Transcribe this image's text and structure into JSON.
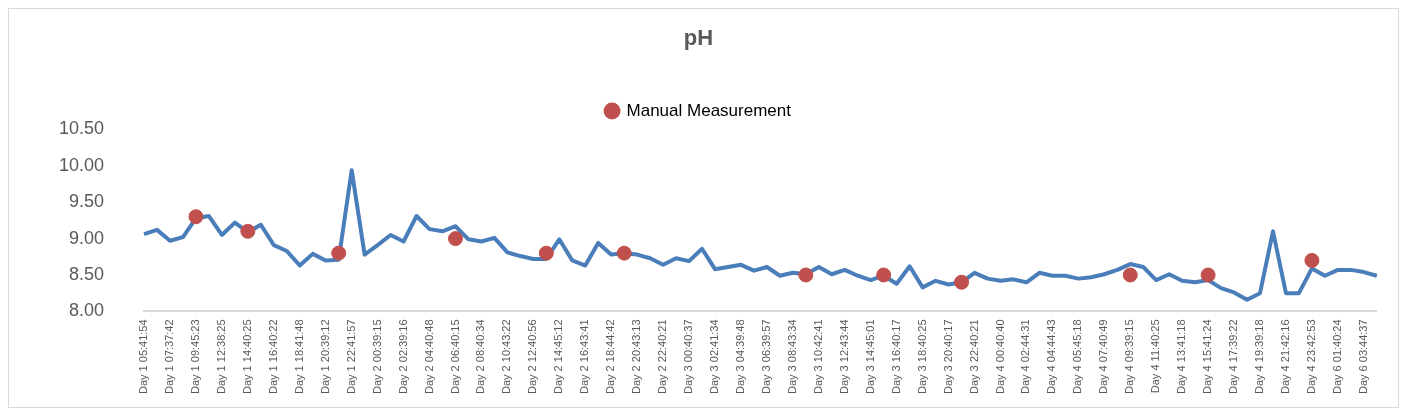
{
  "chart_data": {
    "type": "line",
    "title": "pH",
    "categories": [
      "Day 1 05:41:54",
      null,
      "Day 1 07:37:42",
      null,
      "Day 1 09:45:23",
      null,
      "Day 1 12:38:25",
      null,
      "Day 1 14:40:25",
      null,
      "Day 1 16:40:22",
      null,
      "Day 1 18:41:48",
      null,
      "Day 1 20:39:12",
      null,
      "Day 1 22:41:57",
      null,
      "Day 2 00:39:15",
      null,
      "Day 2 02:39:16",
      null,
      "Day 2 04:40:48",
      null,
      "Day 2 06:40:15",
      null,
      "Day 2 08:40:34",
      null,
      "Day 2 10:43:22",
      null,
      "Day 2 12:40:56",
      null,
      "Day 2 14:45:12",
      null,
      "Day 2 16:43:41",
      null,
      "Day 2 18:44:42",
      null,
      "Day 2 20:43:13",
      null,
      "Day 2 22:40:21",
      null,
      "Day 3 00:40:37",
      null,
      "Day 3 02:41:34",
      null,
      "Day 3 04:39:48",
      null,
      "Day 3 06:39:57",
      null,
      "Day 3 08:43:34",
      null,
      "Day 3 10:42:41",
      null,
      "Day 3 12:43:44",
      null,
      "Day 3 14:45:01",
      null,
      "Day 3 16:40:17",
      null,
      "Day 3 18:40:25",
      null,
      "Day 3 20:40:17",
      null,
      "Day 3 22:40:21",
      null,
      "Day 4 00:40:40",
      null,
      "Day 4 02:44:31",
      null,
      "Day 4 04:44:43",
      null,
      "Day 4 05:45:18",
      null,
      "Day 4 07:40:49",
      null,
      "Day 4 09:39:15",
      null,
      "Day 4 11:40:25",
      null,
      "Day 4 13:41:18",
      null,
      "Day 4 15:41:24",
      null,
      "Day 4 17:39:22",
      null,
      "Day 4 19:39:18",
      null,
      "Day 4 21:42:16",
      null,
      "Day 4 23:42:53",
      null,
      "Day 6 01:40:24",
      null,
      "Day 6 03:44:37",
      null
    ],
    "series": [
      {
        "type": "line",
        "color": "#4a7ebb",
        "values": [
          9.06,
          9.12,
          8.97,
          9.02,
          9.28,
          9.31,
          9.05,
          9.22,
          9.09,
          9.19,
          8.91,
          8.83,
          8.63,
          8.79,
          8.7,
          8.71,
          9.94,
          8.78,
          8.91,
          9.05,
          8.96,
          9.31,
          9.13,
          9.1,
          9.17,
          8.99,
          8.96,
          9.01,
          8.81,
          8.76,
          8.72,
          8.72,
          8.99,
          8.7,
          8.63,
          8.94,
          8.78,
          8.8,
          8.78,
          8.73,
          8.64,
          8.73,
          8.69,
          8.86,
          8.58,
          8.61,
          8.64,
          8.56,
          8.61,
          8.49,
          8.53,
          8.51,
          8.61,
          8.51,
          8.57,
          8.49,
          8.43,
          8.49,
          8.38,
          8.62,
          8.33,
          8.42,
          8.37,
          8.4,
          8.53,
          8.45,
          8.42,
          8.44,
          8.4,
          8.53,
          8.49,
          8.49,
          8.45,
          8.47,
          8.51,
          8.57,
          8.65,
          8.61,
          8.43,
          8.51,
          8.42,
          8.4,
          8.43,
          8.32,
          8.26,
          8.16,
          8.25,
          9.1,
          8.25,
          8.25,
          8.59,
          8.49,
          8.57,
          8.57,
          8.54,
          8.49
        ]
      },
      {
        "type": "scatter",
        "name": "Manual Measurement",
        "color": "#c0504d",
        "marker": "circle",
        "values": [
          null,
          null,
          null,
          null,
          9.3,
          null,
          null,
          null,
          9.1,
          null,
          null,
          null,
          null,
          null,
          null,
          8.8,
          null,
          null,
          null,
          null,
          null,
          null,
          null,
          null,
          9.0,
          null,
          null,
          null,
          null,
          null,
          null,
          8.8,
          null,
          null,
          null,
          null,
          null,
          8.8,
          null,
          null,
          null,
          null,
          null,
          null,
          null,
          null,
          null,
          null,
          null,
          null,
          null,
          8.5,
          null,
          null,
          null,
          null,
          null,
          8.5,
          null,
          null,
          null,
          null,
          null,
          8.4,
          null,
          null,
          null,
          null,
          null,
          null,
          null,
          null,
          null,
          null,
          null,
          null,
          8.5,
          null,
          null,
          null,
          null,
          null,
          8.5,
          null,
          null,
          null,
          null,
          null,
          null,
          null,
          8.7,
          null,
          null,
          null,
          null,
          null
        ]
      }
    ],
    "ylim": [
      8,
      10.5
    ],
    "yticks": [
      {
        "value": 8,
        "label": "8.00"
      },
      {
        "value": 8.5,
        "label": "8.50"
      },
      {
        "value": 9,
        "label": "9.00"
      },
      {
        "value": 9.5,
        "label": "9.50"
      },
      {
        "value": 10,
        "label": "10.00"
      },
      {
        "value": 10.5,
        "label": "10.50"
      }
    ],
    "legend": "top"
  }
}
